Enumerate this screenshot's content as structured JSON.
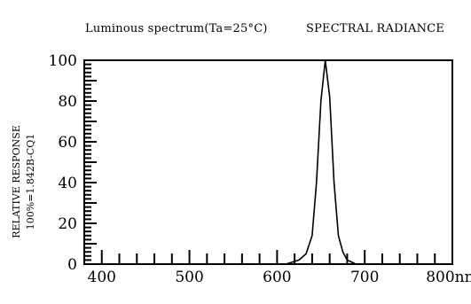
{
  "header": {
    "left_title": "Luminous spectrum(Ta=25°C)",
    "right_title": "SPECTRAL RADIANCE"
  },
  "chart_data": {
    "type": "line",
    "ylabel_line1": "RELATIVE RESPONSE",
    "ylabel_line2": "100%=1.842B-CQ1",
    "xlim": [
      380,
      800
    ],
    "ylim": [
      0,
      100
    ],
    "x_ticks": [
      400,
      500,
      600,
      700,
      800
    ],
    "x_tick_labels": [
      "400",
      "500",
      "600",
      "700",
      "800nm"
    ],
    "y_ticks": [
      0,
      20,
      40,
      60,
      80,
      100
    ],
    "y_tick_labels": [
      "0",
      "20",
      "40",
      "60",
      "80",
      "100"
    ],
    "grid": false,
    "colors": {
      "line": "#000000",
      "axis": "#000000"
    },
    "series": [
      {
        "x": [
          610,
          625,
          633,
          640,
          645,
          650,
          655,
          660,
          665,
          670,
          675,
          680,
          690,
          700,
          720
        ],
        "y": [
          0,
          2,
          5,
          14,
          40,
          80,
          100,
          82,
          40,
          14,
          6,
          2,
          0,
          0,
          0
        ]
      }
    ]
  }
}
